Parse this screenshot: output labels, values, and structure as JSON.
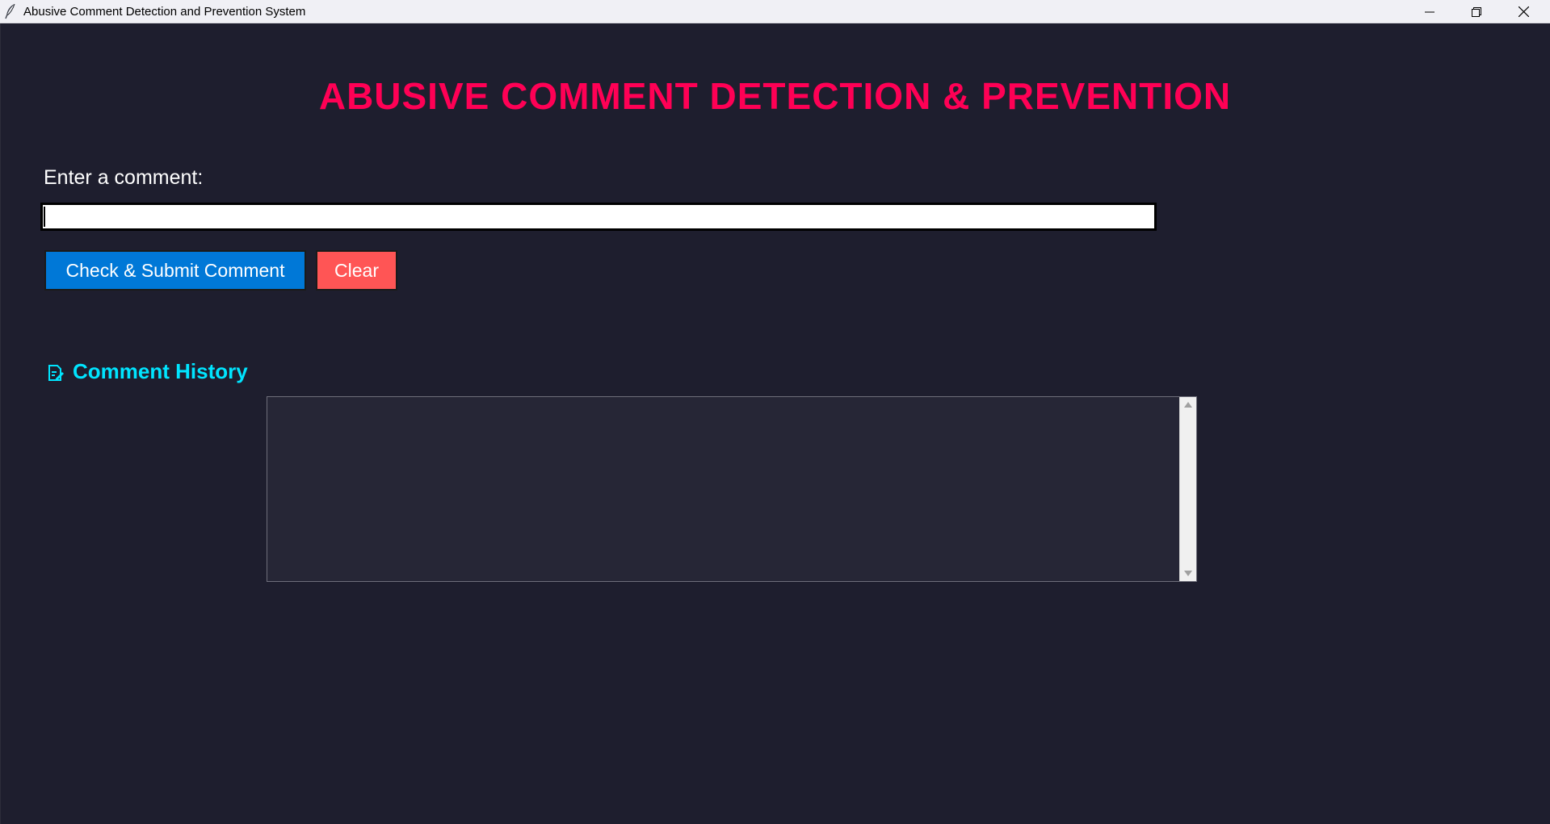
{
  "window": {
    "title": "Abusive Comment Detection and Prevention System",
    "icons": {
      "app": "feather-icon",
      "minimize": "minimize-icon",
      "maximize": "restore-icon",
      "close": "close-icon"
    }
  },
  "main": {
    "heading": "ABUSIVE COMMENT DETECTION & PREVENTION",
    "comment_label": "Enter a comment:",
    "comment_value": "",
    "submit_label": "Check & Submit Comment",
    "clear_label": "Clear",
    "history_icon": "memo-icon",
    "history_heading": "Comment History",
    "history_text": ""
  },
  "colors": {
    "background": "#1e1e2e",
    "heading": "#ff0055",
    "submit": "#0078d7",
    "clear": "#ff5555",
    "history_heading": "#00e5ff",
    "history_box": "#262636"
  }
}
